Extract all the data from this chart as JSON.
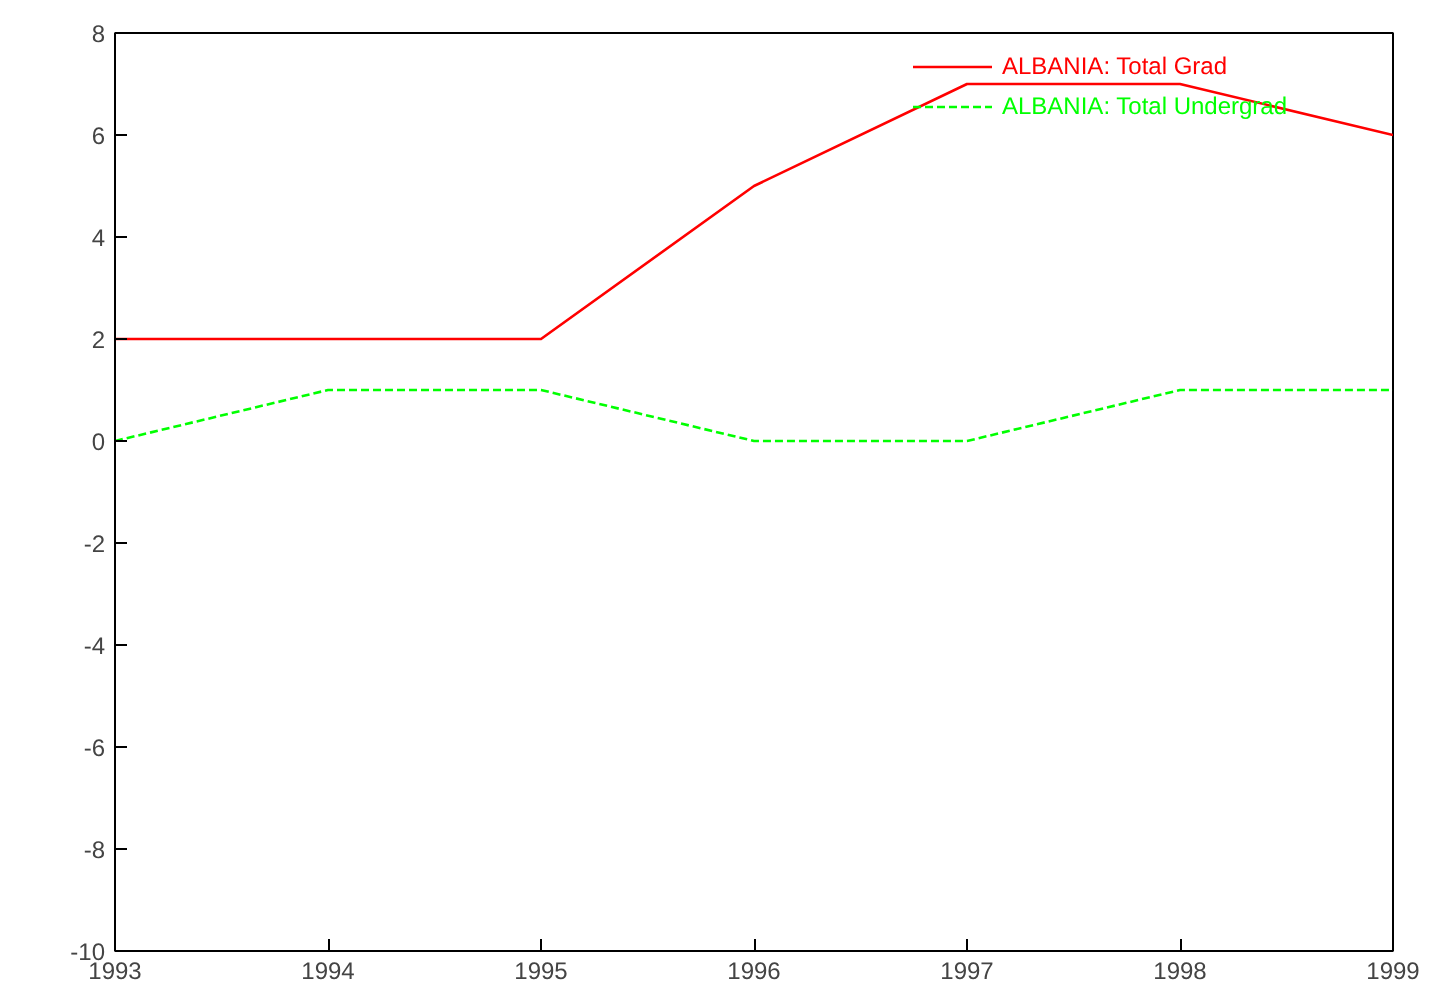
{
  "chart_data": {
    "type": "line",
    "x": [
      1993,
      1994,
      1995,
      1996,
      1997,
      1998,
      1999
    ],
    "series": [
      {
        "name": "ALBANIA: Total Grad",
        "color": "#ff0000",
        "values": [
          2,
          2,
          2,
          5,
          7,
          7,
          6
        ],
        "line_style": "solid"
      },
      {
        "name": "ALBANIA: Total Undergrad",
        "color": "#00ff00",
        "values": [
          0,
          1,
          1,
          0,
          0,
          1,
          1
        ],
        "line_style": "dashed"
      }
    ],
    "xlim": [
      1993,
      1999
    ],
    "xticks": [
      1993,
      1994,
      1995,
      1996,
      1997,
      1998,
      1999
    ],
    "ylim": [
      -10,
      8
    ],
    "yticks": [
      -10,
      -8,
      -6,
      -4,
      -2,
      0,
      2,
      4,
      6,
      8
    ],
    "grid": false,
    "legend": "top right",
    "marker": "none"
  }
}
